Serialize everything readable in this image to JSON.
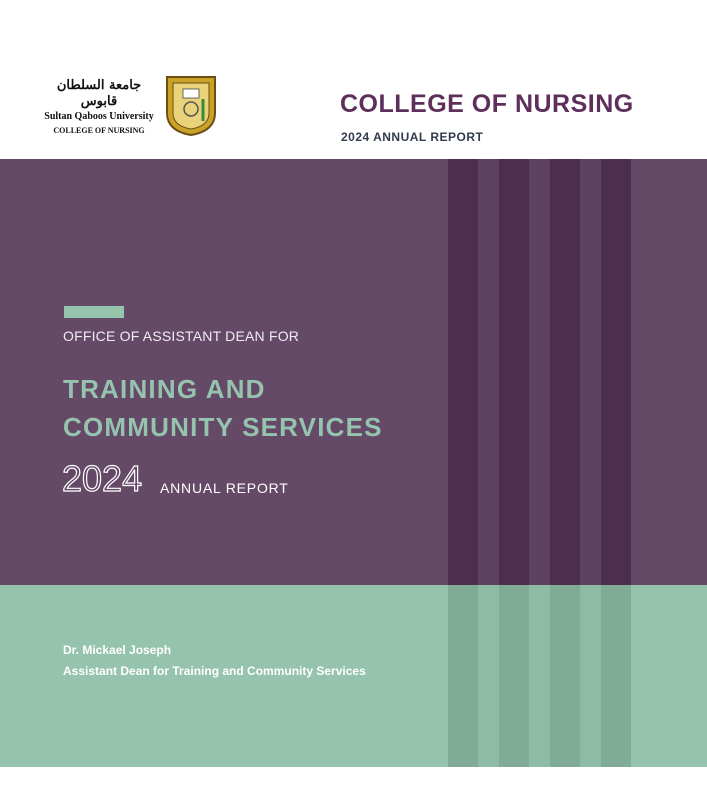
{
  "header": {
    "logo": {
      "arabic": "جامعة السلطان قابوس",
      "english": "Sultan Qaboos University",
      "unit": "COLLEGE OF NURSING"
    },
    "title": "COLLEGE OF NURSING",
    "subtitle": "2024 ANNUAL REPORT"
  },
  "cover": {
    "office": "OFFICE OF ASSISTANT DEAN FOR",
    "title_line1": "TRAINING AND",
    "title_line2": "COMMUNITY SERVICES",
    "year": "2024",
    "report": "ANNUAL REPORT"
  },
  "footer": {
    "name": "Dr. Mickael Joseph",
    "role": "Assistant Dean for Training and Community Services"
  },
  "colors": {
    "purple": "#654a68",
    "purple_dark": "#4e2e4e",
    "green": "#95c3ae",
    "title_purple": "#5e2f5b"
  }
}
